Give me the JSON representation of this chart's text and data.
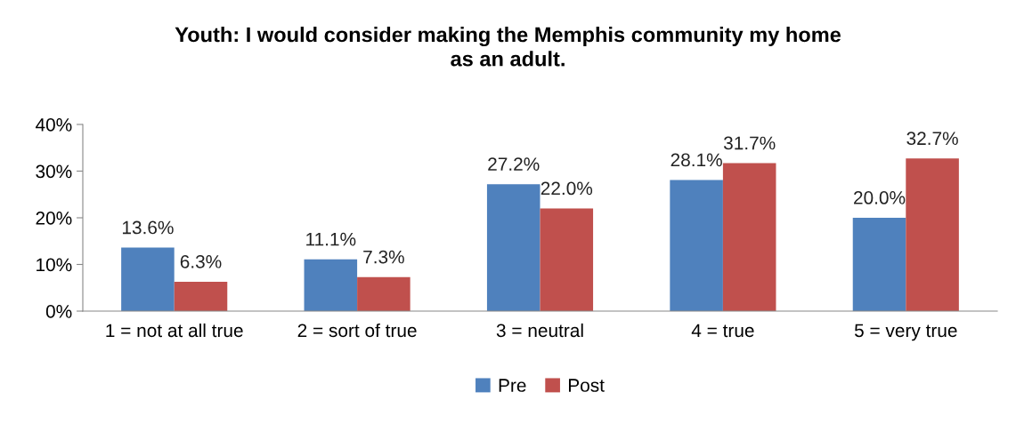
{
  "chart_data": {
    "type": "bar",
    "title": "Youth: I would consider making the Memphis community my home\nas an adult.",
    "categories": [
      "1 = not at all true",
      "2 = sort of true",
      "3 = neutral",
      "4 = true",
      "5 = very true"
    ],
    "series": [
      {
        "name": "Pre",
        "color": "#4f81bd",
        "values": [
          13.6,
          11.1,
          27.2,
          28.1,
          20.0
        ],
        "value_labels": [
          "13.6%",
          "11.1%",
          "27.2%",
          "28.1%",
          "20.0%"
        ]
      },
      {
        "name": "Post",
        "color": "#c0504d",
        "values": [
          6.3,
          7.3,
          22.0,
          31.7,
          32.7
        ],
        "value_labels": [
          "6.3%",
          "7.3%",
          "22.0%",
          "31.7%",
          "32.7%"
        ]
      }
    ],
    "ylim": [
      0,
      40
    ],
    "yticks": [
      {
        "value": 0,
        "label": "0%"
      },
      {
        "value": 10,
        "label": "10%"
      },
      {
        "value": 20,
        "label": "20%"
      },
      {
        "value": 30,
        "label": "30%"
      },
      {
        "value": 40,
        "label": "40%"
      }
    ],
    "grid": false,
    "legend": "bottom"
  }
}
